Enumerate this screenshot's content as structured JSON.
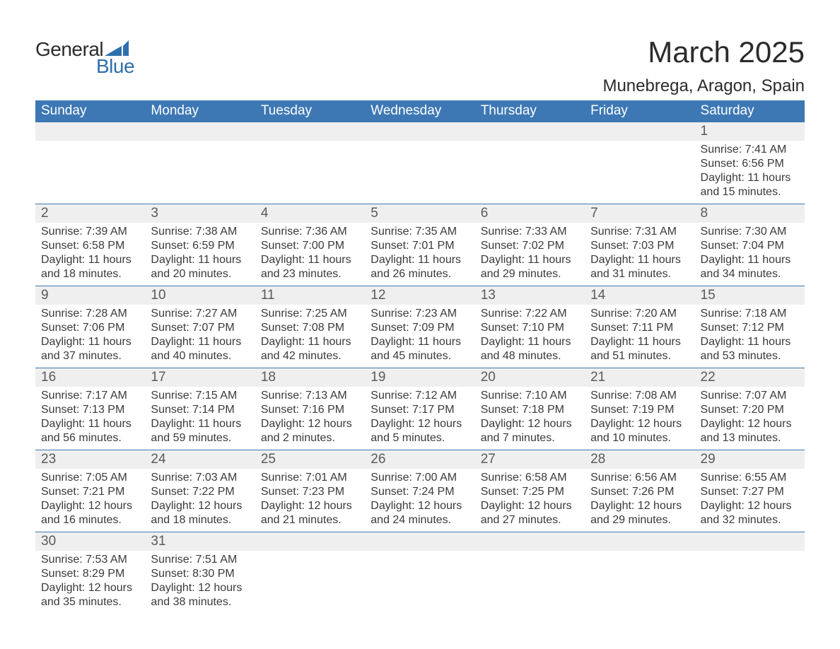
{
  "logo": {
    "text_general": "General",
    "text_blue": "Blue",
    "brand_color": "#2f6fab"
  },
  "header": {
    "month_title": "March 2025",
    "location": "Munebrega, Aragon, Spain"
  },
  "styling": {
    "header_bg": "#3d78b4",
    "header_text_color": "#ffffff",
    "daynum_bg": "#efefef",
    "row_divider_color": "#3d78b4",
    "body_text_color": "#3a3a3a",
    "page_bg": "#ffffff",
    "th_fontsize": 19,
    "daynum_fontsize": 19,
    "detail_fontsize": 16,
    "title_fontsize": 42,
    "location_fontsize": 24
  },
  "weekdays": [
    "Sunday",
    "Monday",
    "Tuesday",
    "Wednesday",
    "Thursday",
    "Friday",
    "Saturday"
  ],
  "weeks": [
    [
      null,
      null,
      null,
      null,
      null,
      null,
      {
        "day": "1",
        "sunrise": "Sunrise: 7:41 AM",
        "sunset": "Sunset: 6:56 PM",
        "daylight1": "Daylight: 11 hours",
        "daylight2": "and 15 minutes."
      }
    ],
    [
      {
        "day": "2",
        "sunrise": "Sunrise: 7:39 AM",
        "sunset": "Sunset: 6:58 PM",
        "daylight1": "Daylight: 11 hours",
        "daylight2": "and 18 minutes."
      },
      {
        "day": "3",
        "sunrise": "Sunrise: 7:38 AM",
        "sunset": "Sunset: 6:59 PM",
        "daylight1": "Daylight: 11 hours",
        "daylight2": "and 20 minutes."
      },
      {
        "day": "4",
        "sunrise": "Sunrise: 7:36 AM",
        "sunset": "Sunset: 7:00 PM",
        "daylight1": "Daylight: 11 hours",
        "daylight2": "and 23 minutes."
      },
      {
        "day": "5",
        "sunrise": "Sunrise: 7:35 AM",
        "sunset": "Sunset: 7:01 PM",
        "daylight1": "Daylight: 11 hours",
        "daylight2": "and 26 minutes."
      },
      {
        "day": "6",
        "sunrise": "Sunrise: 7:33 AM",
        "sunset": "Sunset: 7:02 PM",
        "daylight1": "Daylight: 11 hours",
        "daylight2": "and 29 minutes."
      },
      {
        "day": "7",
        "sunrise": "Sunrise: 7:31 AM",
        "sunset": "Sunset: 7:03 PM",
        "daylight1": "Daylight: 11 hours",
        "daylight2": "and 31 minutes."
      },
      {
        "day": "8",
        "sunrise": "Sunrise: 7:30 AM",
        "sunset": "Sunset: 7:04 PM",
        "daylight1": "Daylight: 11 hours",
        "daylight2": "and 34 minutes."
      }
    ],
    [
      {
        "day": "9",
        "sunrise": "Sunrise: 7:28 AM",
        "sunset": "Sunset: 7:06 PM",
        "daylight1": "Daylight: 11 hours",
        "daylight2": "and 37 minutes."
      },
      {
        "day": "10",
        "sunrise": "Sunrise: 7:27 AM",
        "sunset": "Sunset: 7:07 PM",
        "daylight1": "Daylight: 11 hours",
        "daylight2": "and 40 minutes."
      },
      {
        "day": "11",
        "sunrise": "Sunrise: 7:25 AM",
        "sunset": "Sunset: 7:08 PM",
        "daylight1": "Daylight: 11 hours",
        "daylight2": "and 42 minutes."
      },
      {
        "day": "12",
        "sunrise": "Sunrise: 7:23 AM",
        "sunset": "Sunset: 7:09 PM",
        "daylight1": "Daylight: 11 hours",
        "daylight2": "and 45 minutes."
      },
      {
        "day": "13",
        "sunrise": "Sunrise: 7:22 AM",
        "sunset": "Sunset: 7:10 PM",
        "daylight1": "Daylight: 11 hours",
        "daylight2": "and 48 minutes."
      },
      {
        "day": "14",
        "sunrise": "Sunrise: 7:20 AM",
        "sunset": "Sunset: 7:11 PM",
        "daylight1": "Daylight: 11 hours",
        "daylight2": "and 51 minutes."
      },
      {
        "day": "15",
        "sunrise": "Sunrise: 7:18 AM",
        "sunset": "Sunset: 7:12 PM",
        "daylight1": "Daylight: 11 hours",
        "daylight2": "and 53 minutes."
      }
    ],
    [
      {
        "day": "16",
        "sunrise": "Sunrise: 7:17 AM",
        "sunset": "Sunset: 7:13 PM",
        "daylight1": "Daylight: 11 hours",
        "daylight2": "and 56 minutes."
      },
      {
        "day": "17",
        "sunrise": "Sunrise: 7:15 AM",
        "sunset": "Sunset: 7:14 PM",
        "daylight1": "Daylight: 11 hours",
        "daylight2": "and 59 minutes."
      },
      {
        "day": "18",
        "sunrise": "Sunrise: 7:13 AM",
        "sunset": "Sunset: 7:16 PM",
        "daylight1": "Daylight: 12 hours",
        "daylight2": "and 2 minutes."
      },
      {
        "day": "19",
        "sunrise": "Sunrise: 7:12 AM",
        "sunset": "Sunset: 7:17 PM",
        "daylight1": "Daylight: 12 hours",
        "daylight2": "and 5 minutes."
      },
      {
        "day": "20",
        "sunrise": "Sunrise: 7:10 AM",
        "sunset": "Sunset: 7:18 PM",
        "daylight1": "Daylight: 12 hours",
        "daylight2": "and 7 minutes."
      },
      {
        "day": "21",
        "sunrise": "Sunrise: 7:08 AM",
        "sunset": "Sunset: 7:19 PM",
        "daylight1": "Daylight: 12 hours",
        "daylight2": "and 10 minutes."
      },
      {
        "day": "22",
        "sunrise": "Sunrise: 7:07 AM",
        "sunset": "Sunset: 7:20 PM",
        "daylight1": "Daylight: 12 hours",
        "daylight2": "and 13 minutes."
      }
    ],
    [
      {
        "day": "23",
        "sunrise": "Sunrise: 7:05 AM",
        "sunset": "Sunset: 7:21 PM",
        "daylight1": "Daylight: 12 hours",
        "daylight2": "and 16 minutes."
      },
      {
        "day": "24",
        "sunrise": "Sunrise: 7:03 AM",
        "sunset": "Sunset: 7:22 PM",
        "daylight1": "Daylight: 12 hours",
        "daylight2": "and 18 minutes."
      },
      {
        "day": "25",
        "sunrise": "Sunrise: 7:01 AM",
        "sunset": "Sunset: 7:23 PM",
        "daylight1": "Daylight: 12 hours",
        "daylight2": "and 21 minutes."
      },
      {
        "day": "26",
        "sunrise": "Sunrise: 7:00 AM",
        "sunset": "Sunset: 7:24 PM",
        "daylight1": "Daylight: 12 hours",
        "daylight2": "and 24 minutes."
      },
      {
        "day": "27",
        "sunrise": "Sunrise: 6:58 AM",
        "sunset": "Sunset: 7:25 PM",
        "daylight1": "Daylight: 12 hours",
        "daylight2": "and 27 minutes."
      },
      {
        "day": "28",
        "sunrise": "Sunrise: 6:56 AM",
        "sunset": "Sunset: 7:26 PM",
        "daylight1": "Daylight: 12 hours",
        "daylight2": "and 29 minutes."
      },
      {
        "day": "29",
        "sunrise": "Sunrise: 6:55 AM",
        "sunset": "Sunset: 7:27 PM",
        "daylight1": "Daylight: 12 hours",
        "daylight2": "and 32 minutes."
      }
    ],
    [
      {
        "day": "30",
        "sunrise": "Sunrise: 7:53 AM",
        "sunset": "Sunset: 8:29 PM",
        "daylight1": "Daylight: 12 hours",
        "daylight2": "and 35 minutes."
      },
      {
        "day": "31",
        "sunrise": "Sunrise: 7:51 AM",
        "sunset": "Sunset: 8:30 PM",
        "daylight1": "Daylight: 12 hours",
        "daylight2": "and 38 minutes."
      },
      null,
      null,
      null,
      null,
      null
    ]
  ]
}
